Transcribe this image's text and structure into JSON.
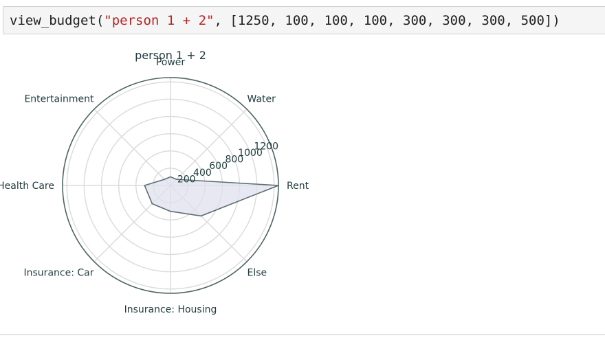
{
  "code_cell": {
    "function_name": "view_budget",
    "open_paren": "(",
    "string_literal": "\"person 1 + 2\"",
    "separator": ", [",
    "numbers_text": "1250, 100, 100, 100, 300, 300, 300, 500",
    "close": "])"
  },
  "chart_data": {
    "type": "radar",
    "title": "person 1 + 2",
    "categories": [
      "Rent",
      "Water",
      "Power",
      "Entertainment",
      "Health Care",
      "Insurance: Car",
      "Insurance: Housing",
      "Else"
    ],
    "values": [
      1250,
      100,
      100,
      100,
      300,
      300,
      300,
      500
    ],
    "radial_ticks": [
      200,
      400,
      600,
      800,
      1000,
      1200
    ],
    "rmax": 1250,
    "grid": true,
    "colors": {
      "line": "#5a6d70",
      "fill": "#dfe0ec",
      "grid": "#dcdcdc",
      "spine": "#4e6466",
      "text": "#1f3a3d"
    }
  }
}
